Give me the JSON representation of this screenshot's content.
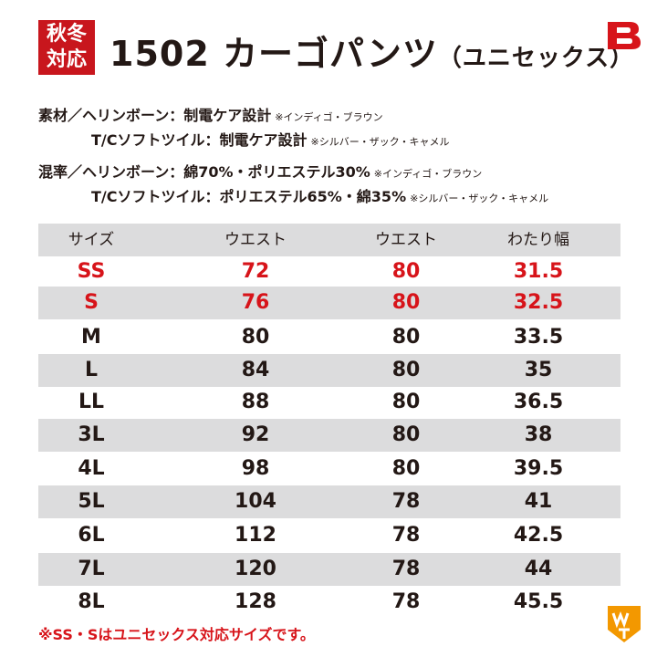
{
  "header": {
    "badge": [
      "秋冬",
      "対応"
    ],
    "title": "1502 カーゴパンツ",
    "subtitle": "（ユニセックス）"
  },
  "materials": [
    {
      "text": "素材／ヘリンボーン：制電ケア設計",
      "note": "※インディゴ・ブラウン"
    },
    {
      "text": "T/Cソフトツイル：制電ケア設計",
      "note": "※シルバー・ザック・キャメル"
    },
    {
      "text": "混率／ヘリンボーン：綿70%・ポリエステル30%",
      "note": "※インディゴ・ブラウン"
    },
    {
      "text": "T/Cソフトツイル：ポリエステル65%・綿35%",
      "note": "※シルバー・ザック・キャメル"
    }
  ],
  "table": {
    "columns": [
      "サイズ",
      "ウエスト",
      "ウエスト",
      "わたり幅"
    ],
    "rows": [
      [
        "SS",
        72,
        80,
        31.5
      ],
      [
        "S",
        76,
        80,
        32.5
      ],
      [
        "M",
        80,
        80,
        33.5
      ],
      [
        "L",
        84,
        80,
        35
      ],
      [
        "LL",
        88,
        80,
        36.5
      ],
      [
        "3L",
        92,
        80,
        38
      ],
      [
        "4L",
        98,
        80,
        39.5
      ],
      [
        "5L",
        104,
        78,
        41
      ],
      [
        "6L",
        112,
        78,
        42.5
      ],
      [
        "7L",
        120,
        78,
        44
      ],
      [
        "8L",
        128,
        78,
        45.5
      ]
    ]
  },
  "footnote": "※SS・Sはユニセックス対応サイズです。"
}
